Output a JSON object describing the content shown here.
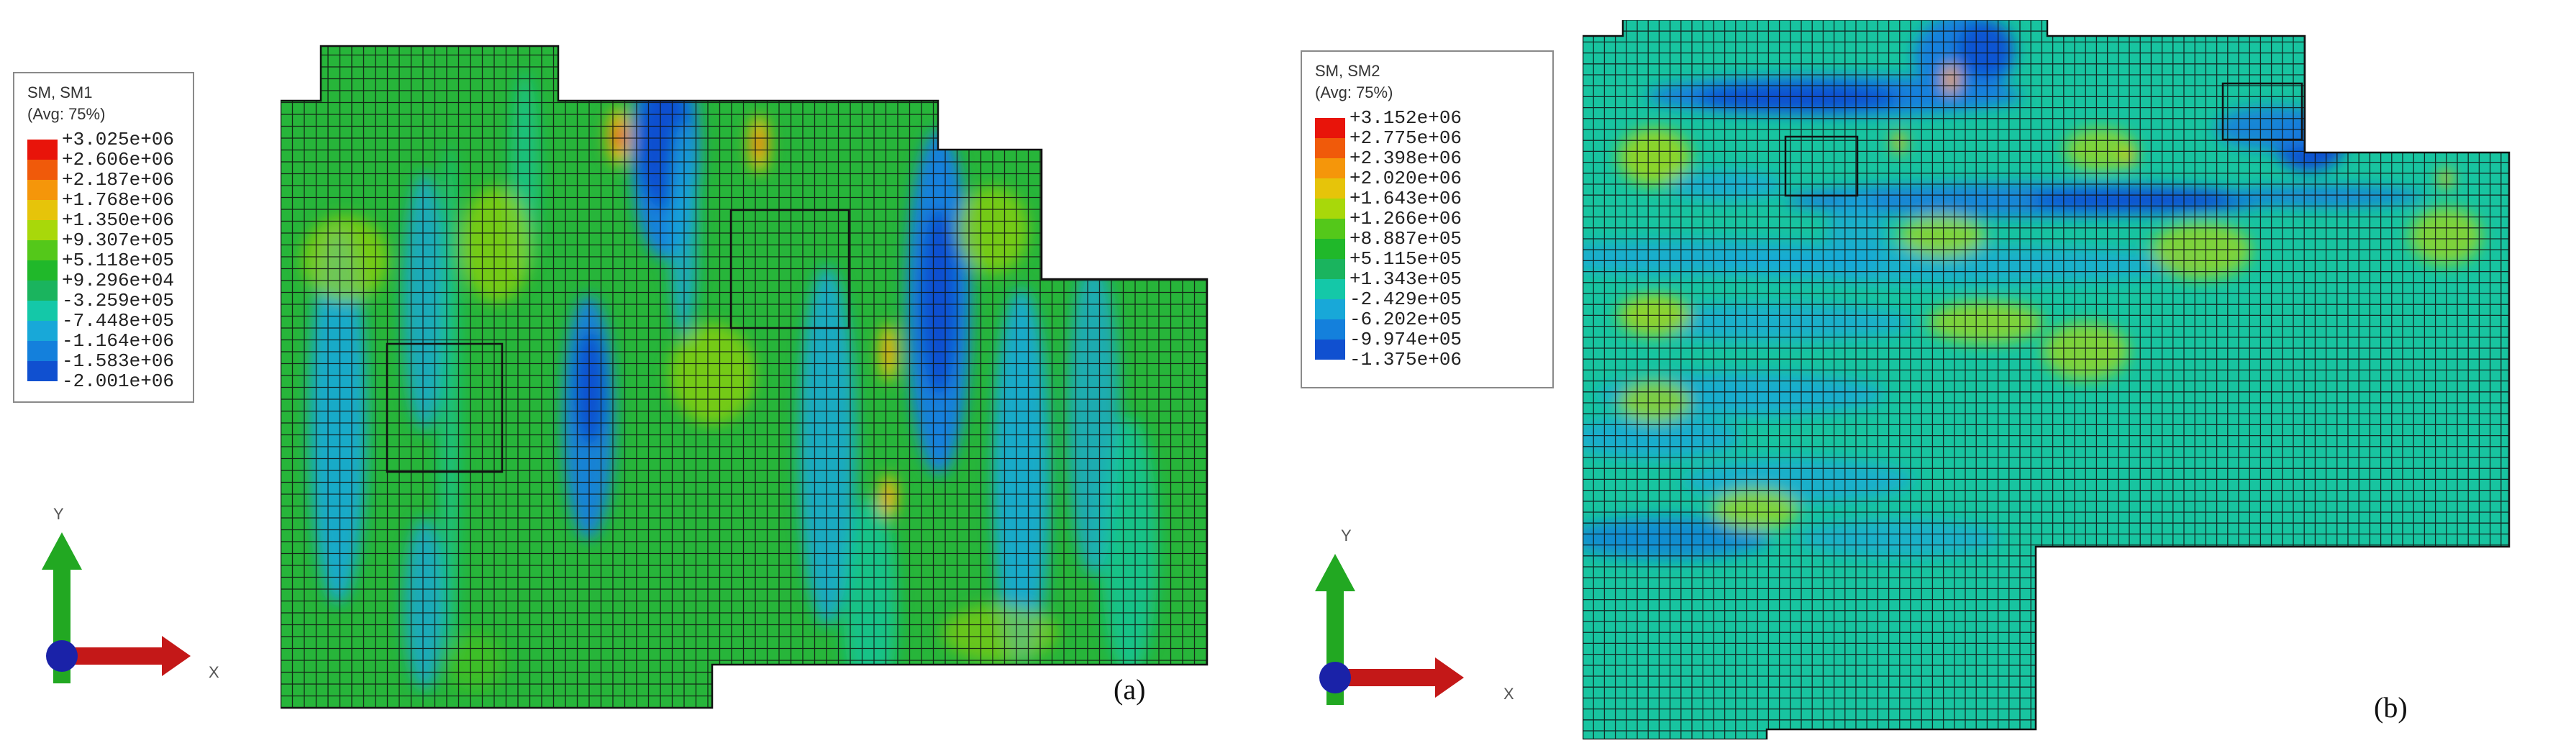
{
  "panels": [
    {
      "legend": {
        "title_line1": "SM, SM1",
        "title_line2": "(Avg: 75%)",
        "values": [
          "+3.025e+06",
          "+2.606e+06",
          "+2.187e+06",
          "+1.768e+06",
          "+1.350e+06",
          "+9.307e+05",
          "+5.118e+05",
          "+9.296e+04",
          "-3.259e+05",
          "-7.448e+05",
          "-1.164e+06",
          "-1.583e+06",
          "-2.001e+06"
        ],
        "colors": [
          "#e8140a",
          "#f05a0a",
          "#f5960a",
          "#e6c40a",
          "#a8d80a",
          "#54c81a",
          "#20b82a",
          "#1ab45e",
          "#14c8a8",
          "#18a8d8",
          "#1480dc",
          "#1050d0",
          "#0a1ac8"
        ]
      },
      "axes": {
        "y": "Y",
        "x": "X"
      },
      "label": "(a)"
    },
    {
      "legend": {
        "title_line1": "SM, SM2",
        "title_line2": "(Avg: 75%)",
        "values": [
          "+3.152e+06",
          "+2.775e+06",
          "+2.398e+06",
          "+2.020e+06",
          "+1.643e+06",
          "+1.266e+06",
          "+8.887e+05",
          "+5.115e+05",
          "+1.343e+05",
          "-2.429e+05",
          "-6.202e+05",
          "-9.974e+05",
          "-1.375e+06"
        ],
        "colors": [
          "#e8140a",
          "#f05a0a",
          "#f5960a",
          "#e6c40a",
          "#a8d80a",
          "#54c81a",
          "#20b82a",
          "#1ab45e",
          "#14c8a8",
          "#18a8d8",
          "#1480dc",
          "#1050d0",
          "#0a1ac8"
        ]
      },
      "axes": {
        "y": "Y",
        "x": "X"
      },
      "label": "(b)"
    }
  ]
}
